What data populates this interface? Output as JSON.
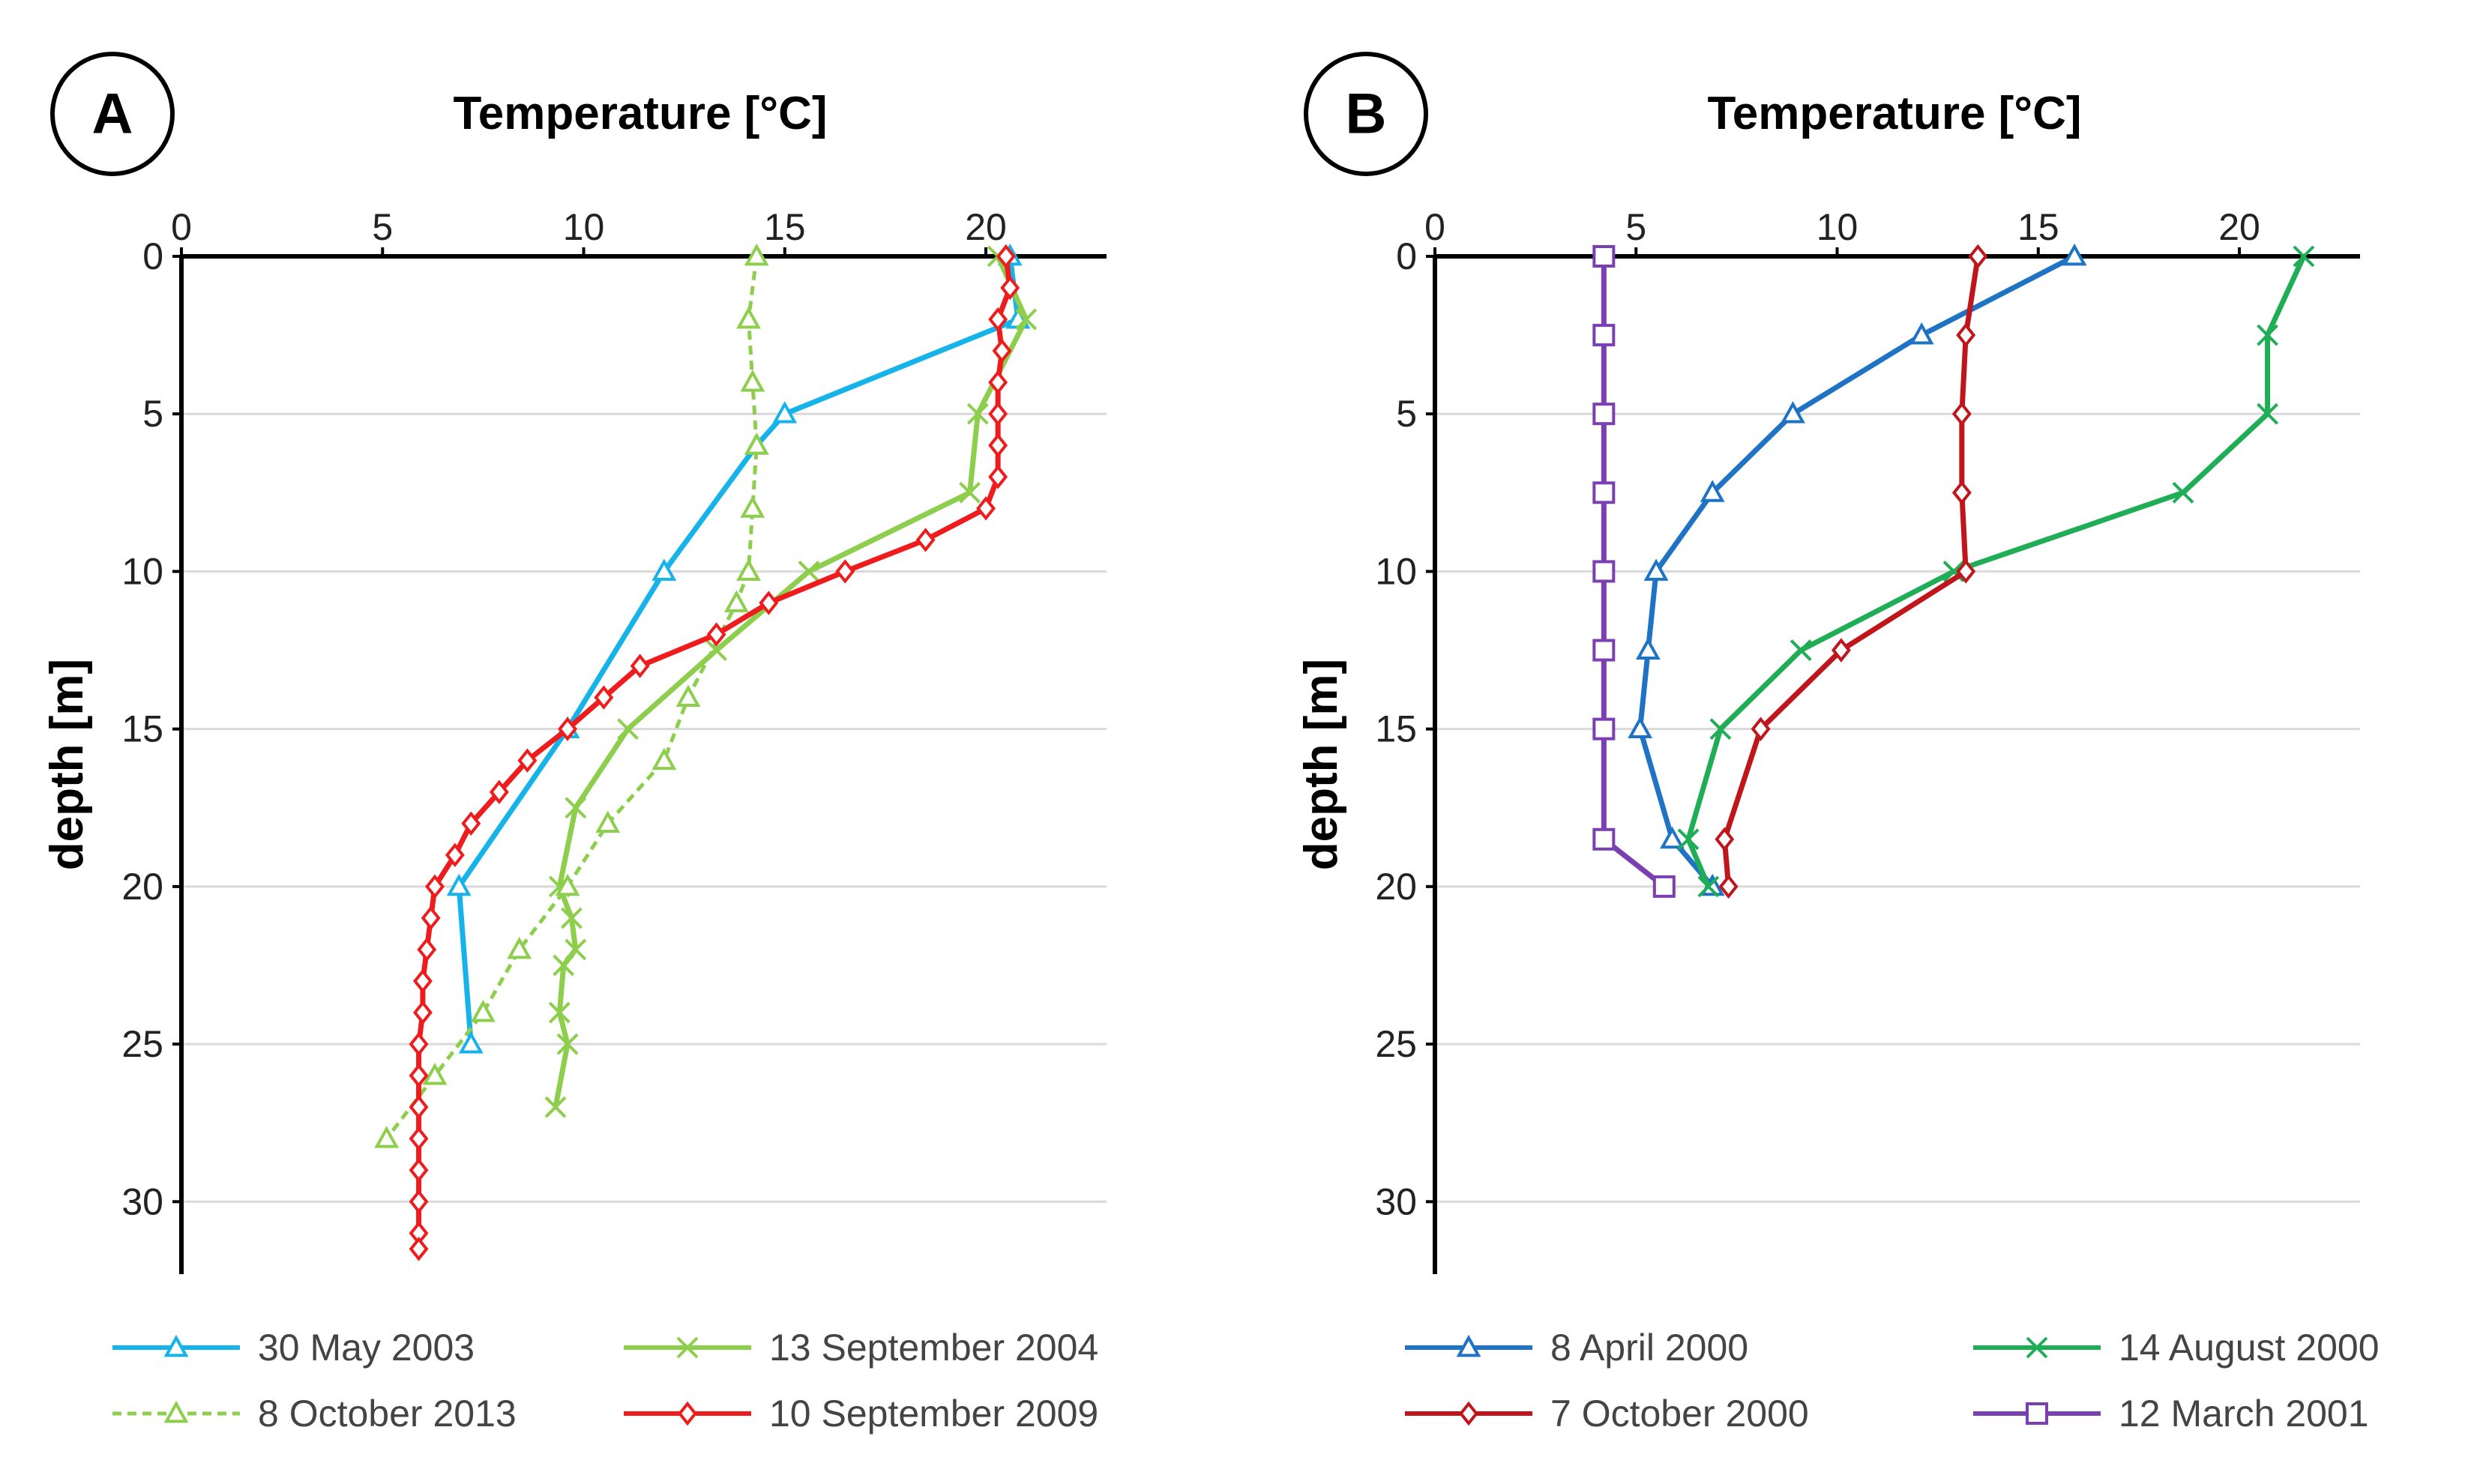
{
  "chart_data": [
    {
      "type": "line",
      "panel": "A",
      "xlabel": "Temperature [°C]",
      "ylabel": "depth [m]",
      "xlim": [
        0,
        23
      ],
      "ylim": [
        0,
        32.3
      ],
      "x_ticks": [
        0,
        5,
        10,
        15,
        20
      ],
      "y_ticks": [
        0,
        5,
        10,
        15,
        20,
        25,
        30
      ],
      "grid": true,
      "y_inverted": true,
      "legend_position": "bottom",
      "series": [
        {
          "name": "30 May 2003",
          "color": "#16b3ea",
          "dash": "solid",
          "marker": "triangle",
          "temps": [
            20.6,
            20.8,
            15.0,
            14.3,
            12.0,
            9.6,
            6.9,
            7.2
          ],
          "depths": [
            0,
            2,
            5,
            6,
            10,
            15,
            20,
            25
          ]
        },
        {
          "name": "13 September 2004",
          "color": "#8dce4d",
          "dash": "solid",
          "marker": "x",
          "temps": [
            20.3,
            21.0,
            19.8,
            19.6,
            15.6,
            13.3,
            11.1,
            9.8,
            9.4,
            9.7,
            9.8,
            9.5,
            9.4,
            9.6,
            9.3
          ],
          "depths": [
            0,
            2,
            5,
            7.5,
            10,
            12.5,
            15,
            17.5,
            20,
            21,
            22,
            22.5,
            24,
            25,
            27
          ]
        },
        {
          "name": "8 October 2013",
          "color": "#8dce4d",
          "dash": "dashed",
          "marker": "triangle",
          "temps": [
            14.3,
            14.1,
            14.2,
            14.3,
            14.2,
            14.1,
            13.8,
            12.6,
            12.0,
            10.6,
            9.6,
            8.4,
            7.5,
            6.3,
            5.1
          ],
          "depths": [
            0,
            2,
            4,
            6,
            8,
            10,
            11,
            14,
            16,
            18,
            20,
            22,
            24,
            26,
            28
          ]
        },
        {
          "name": "10 September 2009",
          "color": "#ee1c1c",
          "dash": "solid",
          "marker": "diamond",
          "temps": [
            20.5,
            20.6,
            20.3,
            20.4,
            20.3,
            20.3,
            20.3,
            20.3,
            20.0,
            18.5,
            16.5,
            14.6,
            13.3,
            11.4,
            10.5,
            9.6,
            8.6,
            7.9,
            7.2,
            6.8,
            6.3,
            6.2,
            6.1,
            6.0,
            6.0,
            5.9,
            5.9,
            5.9,
            5.9,
            5.9,
            5.9,
            5.9,
            5.9
          ],
          "depths": [
            0,
            1,
            2,
            3,
            4,
            5,
            6,
            7,
            8,
            9,
            10,
            11,
            12,
            13,
            14,
            15,
            16,
            17,
            18,
            19,
            20,
            21,
            22,
            23,
            24,
            25,
            26,
            27,
            28,
            29,
            30,
            31,
            31.5
          ]
        }
      ]
    },
    {
      "type": "line",
      "panel": "B",
      "xlabel": "Temperature [°C]",
      "ylabel": "depth [m]",
      "xlim": [
        0,
        23
      ],
      "ylim": [
        0,
        32.3
      ],
      "x_ticks": [
        0,
        5,
        10,
        15,
        20
      ],
      "y_ticks": [
        0,
        5,
        10,
        15,
        20,
        25,
        30
      ],
      "grid": true,
      "y_inverted": true,
      "legend_position": "bottom",
      "series": [
        {
          "name": "8 April 2000",
          "color": "#1f73c4",
          "dash": "solid",
          "marker": "triangle",
          "temps": [
            15.9,
            12.1,
            8.9,
            6.9,
            5.5,
            5.3,
            5.1,
            5.9,
            6.9
          ],
          "depths": [
            0,
            2.5,
            5,
            7.5,
            10,
            12.5,
            15,
            18.5,
            20
          ]
        },
        {
          "name": "14 August 2000",
          "color": "#1fad55",
          "dash": "solid",
          "marker": "x",
          "temps": [
            21.6,
            20.7,
            20.7,
            18.6,
            12.9,
            9.1,
            7.1,
            6.3,
            6.8
          ],
          "depths": [
            0,
            2.5,
            5,
            7.5,
            10,
            12.5,
            15,
            18.5,
            20
          ]
        },
        {
          "name": "7 October 2000",
          "color": "#c0151b",
          "dash": "solid",
          "marker": "diamond",
          "temps": [
            13.5,
            13.2,
            13.1,
            13.1,
            13.2,
            10.1,
            8.1,
            7.2,
            7.3
          ],
          "depths": [
            0,
            2.5,
            5,
            7.5,
            10,
            12.5,
            15,
            18.5,
            20
          ]
        },
        {
          "name": "12 March 2001",
          "color": "#7a3fb0",
          "dash": "solid",
          "marker": "square",
          "temps": [
            4.2,
            4.2,
            4.2,
            4.2,
            4.2,
            4.2,
            4.2,
            4.2,
            5.7
          ],
          "depths": [
            0,
            2.5,
            5,
            7.5,
            10,
            12.5,
            15,
            18.5,
            20
          ]
        }
      ]
    }
  ]
}
